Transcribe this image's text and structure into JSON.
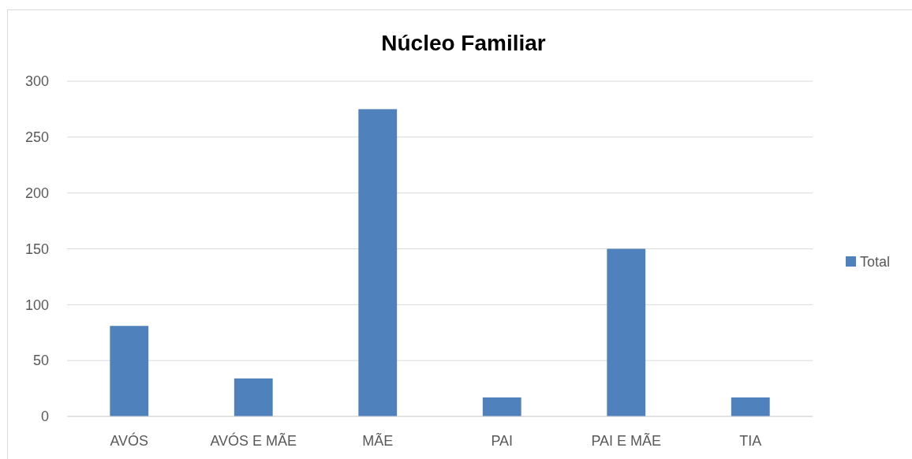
{
  "chart_data": {
    "type": "bar",
    "title": "Núcleo Familiar",
    "categories": [
      "AVÓS",
      "AVÓS E MÃE",
      "MÃE",
      "PAI",
      "PAI E MÃE",
      "TIA"
    ],
    "series": [
      {
        "name": "Total",
        "color": "#4f81bd",
        "values": [
          81,
          34,
          275,
          17,
          150,
          17
        ]
      }
    ],
    "ylim": [
      0,
      300
    ],
    "yticks": [
      0,
      50,
      100,
      150,
      200,
      250,
      300
    ],
    "grid": "y",
    "legend": "right"
  }
}
